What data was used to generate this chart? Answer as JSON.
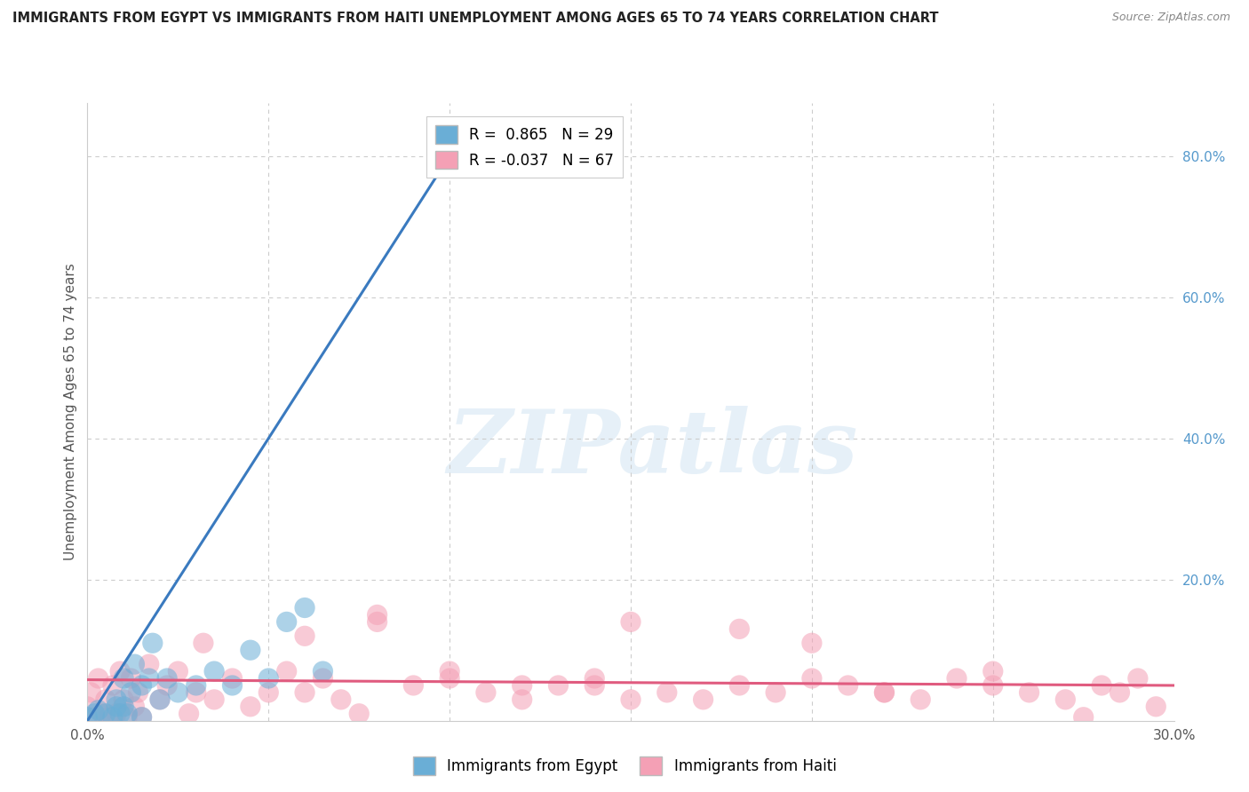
{
  "title": "IMMIGRANTS FROM EGYPT VS IMMIGRANTS FROM HAITI UNEMPLOYMENT AMONG AGES 65 TO 74 YEARS CORRELATION CHART",
  "source": "Source: ZipAtlas.com",
  "xlabel": "",
  "ylabel": "Unemployment Among Ages 65 to 74 years",
  "xlim": [
    0.0,
    0.3
  ],
  "ylim": [
    0.0,
    0.875
  ],
  "xticks": [
    0.0,
    0.05,
    0.1,
    0.15,
    0.2,
    0.25,
    0.3
  ],
  "xticklabels": [
    "0.0%",
    "",
    "",
    "",
    "",
    "",
    "30.0%"
  ],
  "yticks_right": [
    0.0,
    0.2,
    0.4,
    0.6,
    0.8
  ],
  "yticklabels_right": [
    "",
    "20.0%",
    "40.0%",
    "60.0%",
    "80.0%"
  ],
  "egypt_R": 0.865,
  "egypt_N": 29,
  "haiti_R": -0.037,
  "haiti_N": 67,
  "egypt_color": "#6aaed6",
  "haiti_color": "#f4a0b5",
  "egypt_line_color": "#3a7abf",
  "haiti_line_color": "#e05b7f",
  "watermark": "ZIPatlas",
  "egypt_x": [
    0.0,
    0.002,
    0.003,
    0.005,
    0.007,
    0.008,
    0.008,
    0.009,
    0.01,
    0.01,
    0.011,
    0.012,
    0.013,
    0.015,
    0.015,
    0.017,
    0.018,
    0.02,
    0.022,
    0.025,
    0.03,
    0.035,
    0.04,
    0.045,
    0.05,
    0.055,
    0.06,
    0.065,
    0.1
  ],
  "egypt_y": [
    0.005,
    0.01,
    0.015,
    0.01,
    0.005,
    0.02,
    0.03,
    0.01,
    0.02,
    0.06,
    0.01,
    0.04,
    0.08,
    0.005,
    0.05,
    0.06,
    0.11,
    0.03,
    0.06,
    0.04,
    0.05,
    0.07,
    0.05,
    0.1,
    0.06,
    0.14,
    0.16,
    0.07,
    0.8
  ],
  "haiti_x": [
    0.0,
    0.001,
    0.002,
    0.003,
    0.004,
    0.005,
    0.006,
    0.007,
    0.008,
    0.009,
    0.01,
    0.011,
    0.012,
    0.013,
    0.014,
    0.015,
    0.017,
    0.02,
    0.022,
    0.025,
    0.028,
    0.03,
    0.032,
    0.035,
    0.04,
    0.045,
    0.05,
    0.055,
    0.06,
    0.065,
    0.07,
    0.075,
    0.08,
    0.09,
    0.1,
    0.11,
    0.12,
    0.13,
    0.14,
    0.15,
    0.16,
    0.17,
    0.18,
    0.19,
    0.2,
    0.21,
    0.22,
    0.23,
    0.24,
    0.25,
    0.26,
    0.27,
    0.275,
    0.28,
    0.285,
    0.29,
    0.295,
    0.15,
    0.18,
    0.12,
    0.22,
    0.25,
    0.06,
    0.08,
    0.1,
    0.14,
    0.2
  ],
  "haiti_y": [
    0.02,
    0.04,
    0.005,
    0.06,
    0.01,
    0.03,
    0.005,
    0.05,
    0.01,
    0.07,
    0.03,
    0.005,
    0.06,
    0.02,
    0.04,
    0.005,
    0.08,
    0.03,
    0.05,
    0.07,
    0.01,
    0.04,
    0.11,
    0.03,
    0.06,
    0.02,
    0.04,
    0.07,
    0.04,
    0.06,
    0.03,
    0.01,
    0.14,
    0.05,
    0.06,
    0.04,
    0.03,
    0.05,
    0.06,
    0.14,
    0.04,
    0.03,
    0.05,
    0.04,
    0.11,
    0.05,
    0.04,
    0.03,
    0.06,
    0.05,
    0.04,
    0.03,
    0.005,
    0.05,
    0.04,
    0.06,
    0.02,
    0.03,
    0.13,
    0.05,
    0.04,
    0.07,
    0.12,
    0.15,
    0.07,
    0.05,
    0.06
  ],
  "egypt_line_x0": 0.0,
  "egypt_line_y0": 0.0,
  "egypt_line_x1": 0.1,
  "egypt_line_y1": 0.8,
  "haiti_line_x0": 0.0,
  "haiti_line_y0": 0.058,
  "haiti_line_x1": 0.3,
  "haiti_line_y1": 0.05
}
